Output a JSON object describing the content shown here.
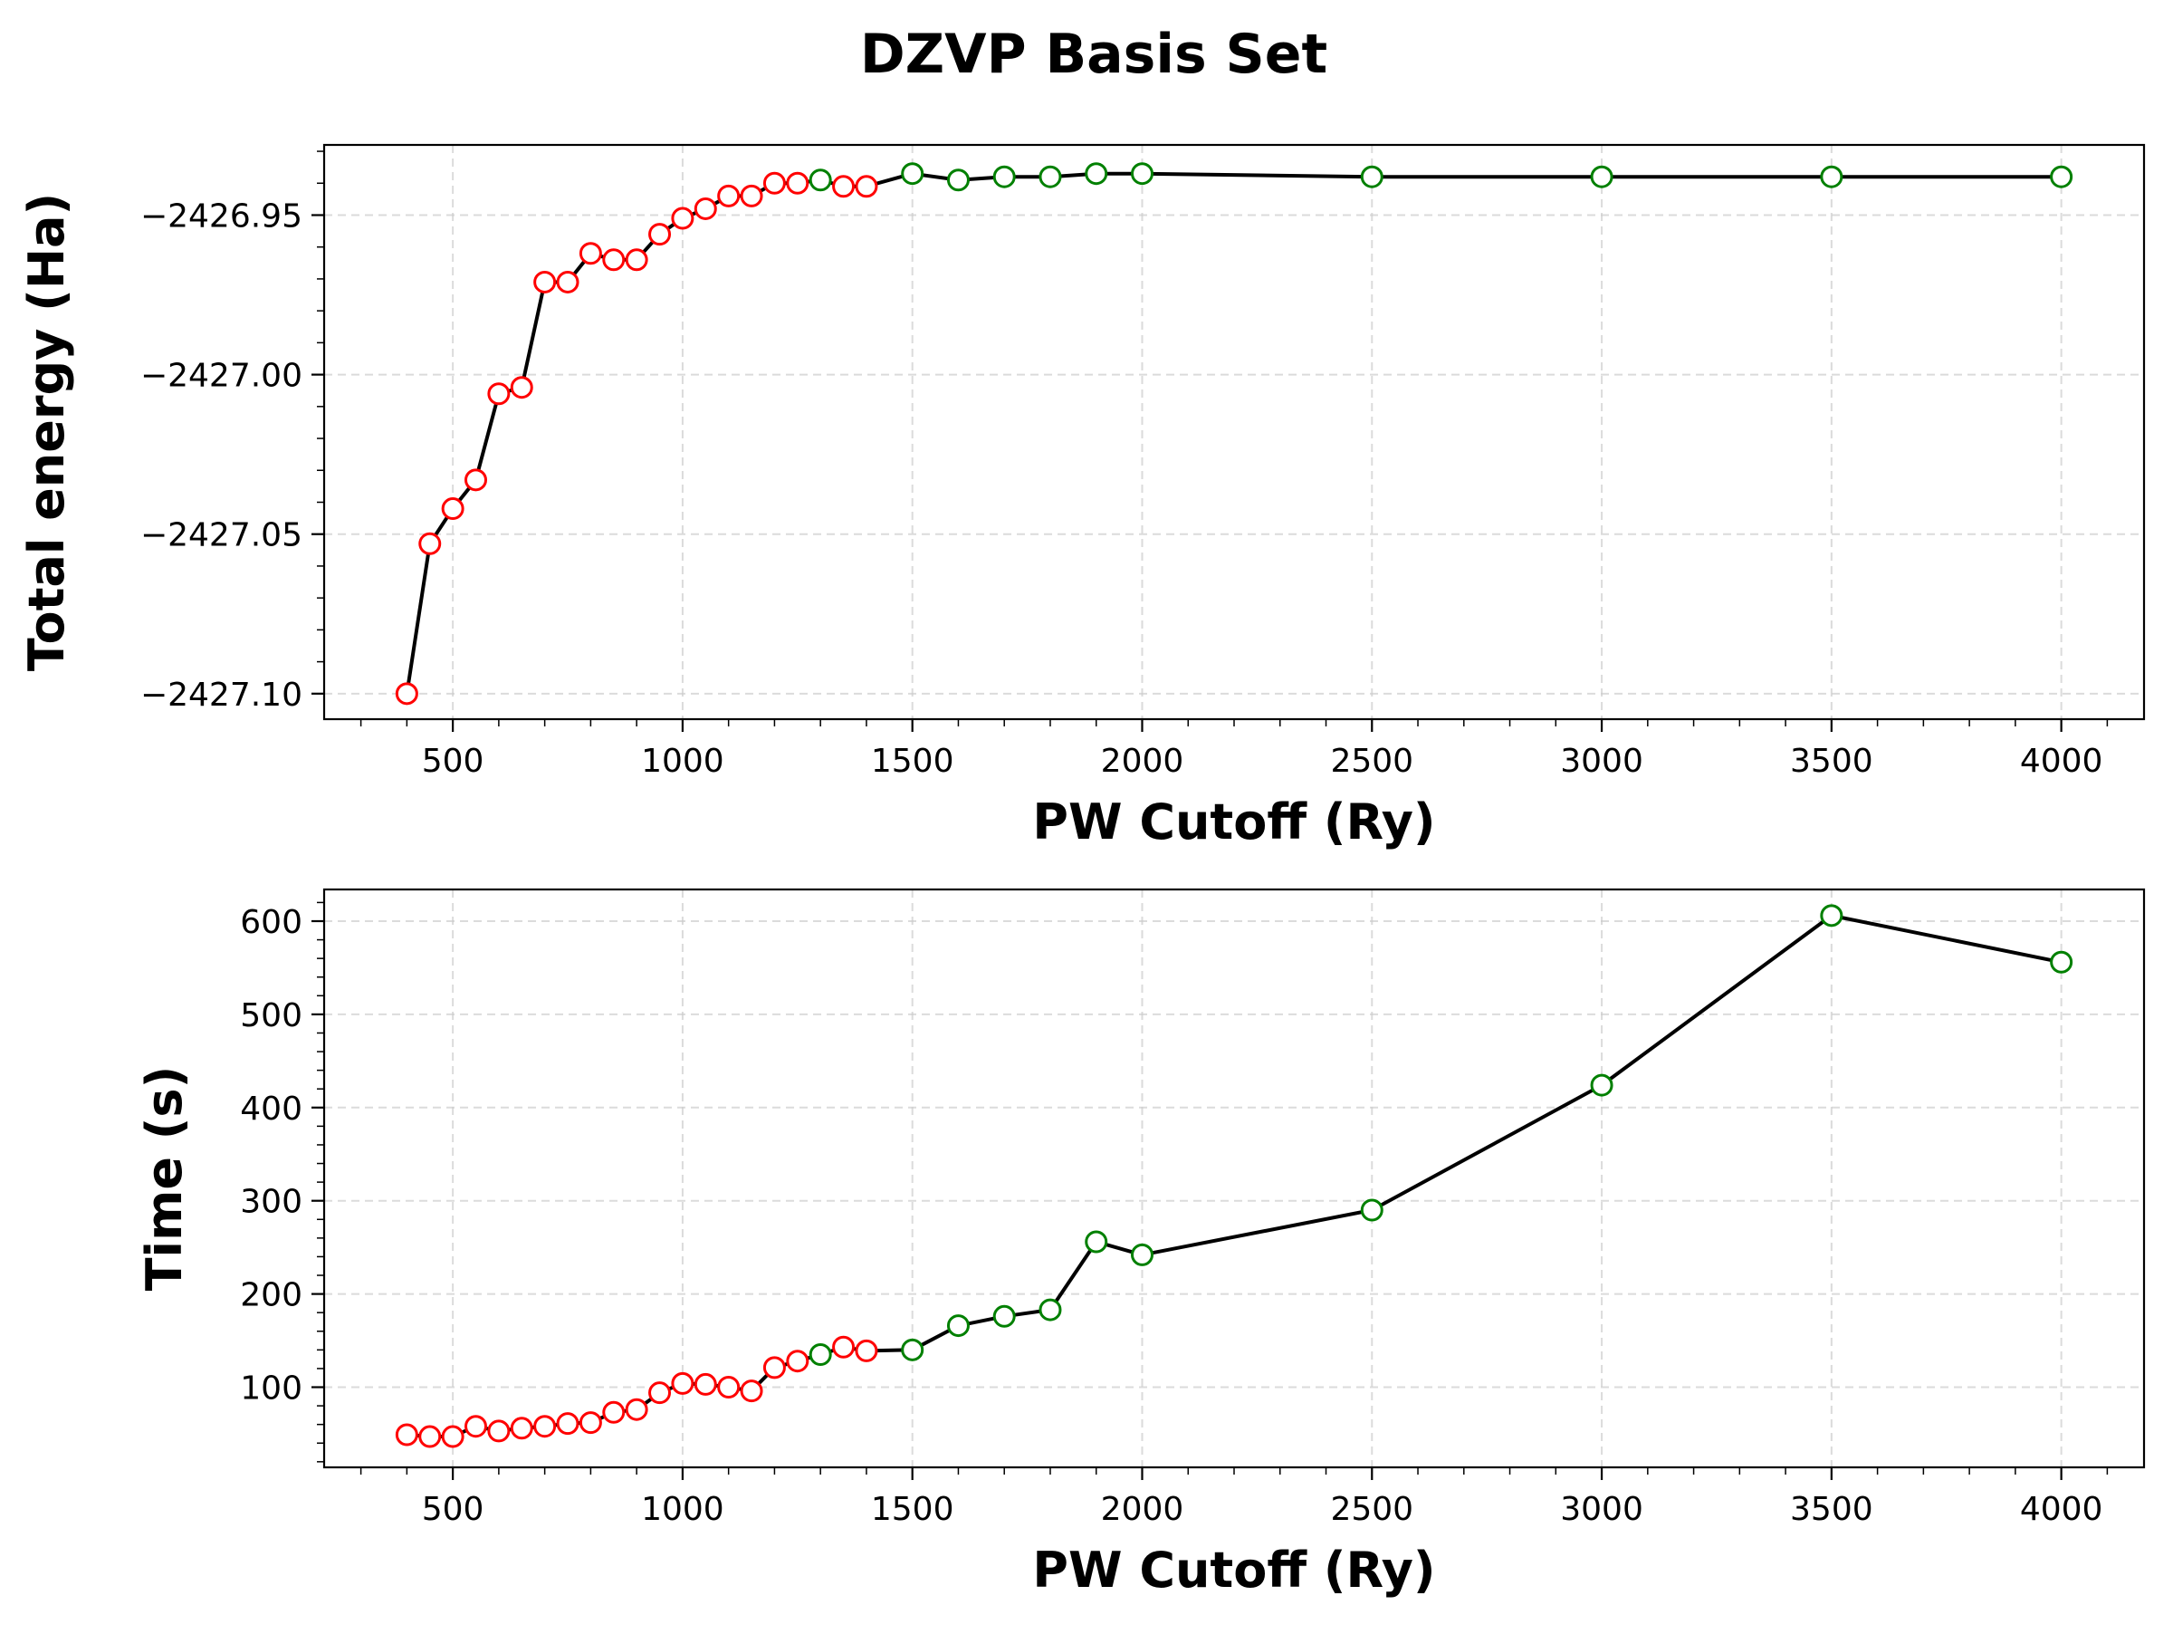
{
  "figure": {
    "title": "DZVP Basis Set"
  },
  "chart_data": [
    {
      "type": "line",
      "title": "",
      "xlabel": "PW Cutoff (Ry)",
      "ylabel": "Total energy (Ha)",
      "xlim": [
        220,
        4180
      ],
      "ylim": [
        -427.108,
        -426.928
      ],
      "y_offset_label": "-2427",
      "xticks": [
        500,
        1000,
        1500,
        2000,
        2500,
        3000,
        3500,
        4000
      ],
      "xtick_labels": [
        "500",
        "1000",
        "1500",
        "2000",
        "2500",
        "3000",
        "3500",
        "4000"
      ],
      "yticks": [
        -427.1,
        -427.05,
        -427.0,
        -426.95
      ],
      "ytick_labels": [
        "−2427.10",
        "−2427.05",
        "−2427.00",
        "−2426.95"
      ],
      "grid": true,
      "line_color": "#000000",
      "marker_colors": {
        "not_converged": "#ff0000",
        "converged": "#008000"
      },
      "x": [
        400,
        450,
        500,
        550,
        600,
        650,
        700,
        750,
        800,
        850,
        900,
        950,
        1000,
        1050,
        1100,
        1150,
        1200,
        1250,
        1300,
        1350,
        1400,
        1500,
        1600,
        1700,
        1800,
        1900,
        2000,
        2500,
        3000,
        3500,
        4000
      ],
      "y": [
        -427.1,
        -427.053,
        -427.042,
        -427.033,
        -427.006,
        -427.004,
        -426.971,
        -426.971,
        -426.962,
        -426.964,
        -426.964,
        -426.956,
        -426.951,
        -426.948,
        -426.944,
        -426.944,
        -426.94,
        -426.94,
        -426.939,
        -426.941,
        -426.941,
        -426.937,
        -426.939,
        -426.938,
        -426.938,
        -426.937,
        -426.937,
        -426.938,
        -426.938,
        -426.938,
        -426.938
      ],
      "status": [
        "r",
        "r",
        "r",
        "r",
        "r",
        "r",
        "r",
        "r",
        "r",
        "r",
        "r",
        "r",
        "r",
        "r",
        "r",
        "r",
        "r",
        "r",
        "g",
        "r",
        "r",
        "g",
        "g",
        "g",
        "g",
        "g",
        "g",
        "g",
        "g",
        "g",
        "g"
      ]
    },
    {
      "type": "line",
      "title": "",
      "xlabel": "PW Cutoff (Ry)",
      "ylabel": "Time (s)",
      "xlim": [
        220,
        4180
      ],
      "ylim": [
        14,
        634
      ],
      "xticks": [
        500,
        1000,
        1500,
        2000,
        2500,
        3000,
        3500,
        4000
      ],
      "xtick_labels": [
        "500",
        "1000",
        "1500",
        "2000",
        "2500",
        "3000",
        "3500",
        "4000"
      ],
      "yticks": [
        100,
        200,
        300,
        400,
        500,
        600
      ],
      "ytick_labels": [
        "100",
        "200",
        "300",
        "400",
        "500",
        "600"
      ],
      "grid": true,
      "line_color": "#000000",
      "marker_colors": {
        "not_converged": "#ff0000",
        "converged": "#008000"
      },
      "x": [
        400,
        450,
        500,
        550,
        600,
        650,
        700,
        750,
        800,
        850,
        900,
        950,
        1000,
        1050,
        1100,
        1150,
        1200,
        1250,
        1300,
        1350,
        1400,
        1500,
        1600,
        1700,
        1800,
        1900,
        2000,
        2500,
        3000,
        3500,
        4000
      ],
      "y": [
        49,
        47,
        47,
        58,
        53,
        56,
        58,
        61,
        62,
        73,
        76,
        94,
        104,
        103,
        100,
        96,
        121,
        128,
        135,
        143,
        139,
        140,
        166,
        176,
        183,
        256,
        242,
        290,
        424,
        606,
        556
      ],
      "status": [
        "r",
        "r",
        "r",
        "r",
        "r",
        "r",
        "r",
        "r",
        "r",
        "r",
        "r",
        "r",
        "r",
        "r",
        "r",
        "r",
        "r",
        "r",
        "g",
        "r",
        "r",
        "g",
        "g",
        "g",
        "g",
        "g",
        "g",
        "g",
        "g",
        "g",
        "g"
      ]
    }
  ]
}
